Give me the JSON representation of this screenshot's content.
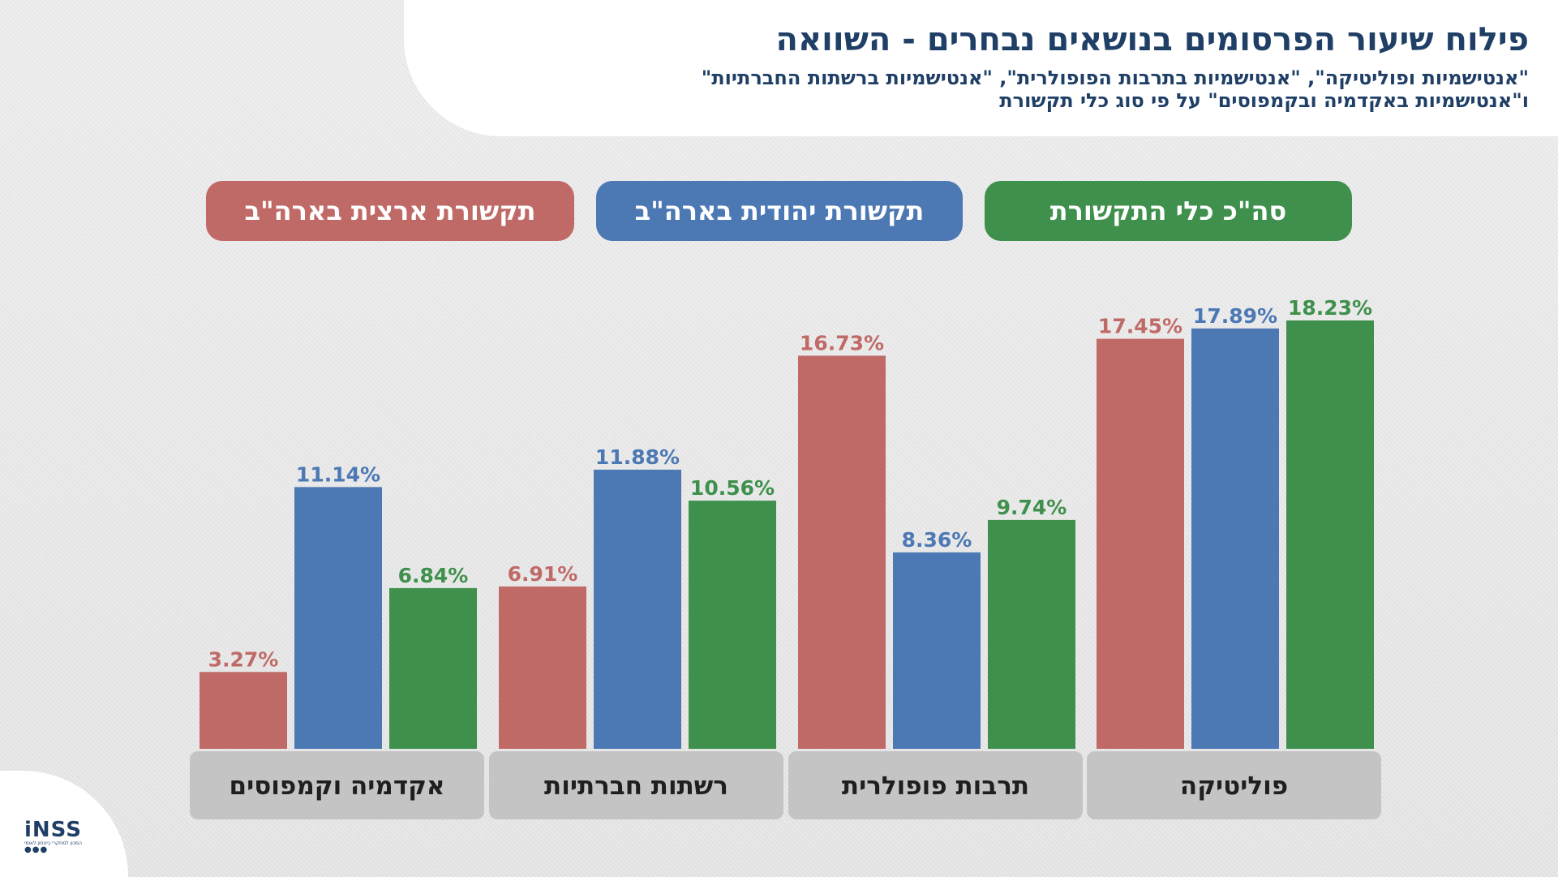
{
  "header": {
    "title": "פילוח שיעור הפרסומים בנושאים נבחרים - השוואה",
    "subtitle_line1": "\"אנטישמיות ופוליטיקה\", \"אנטישמיות בתרבות הפופולרית\", \"אנטישמיות ברשתות החברתיות\"",
    "subtitle_line2": "ו\"אנטישמיות באקדמיה ובקמפוסים\" על פי סוג כלי תקשורת"
  },
  "logo": {
    "text": "iNSS",
    "small_text": "המכון למחקרי ביטחון לאומי",
    "dots": "●●●"
  },
  "colors": {
    "us_national_media": "#c06a68",
    "us_jewish_media": "#4c78b4",
    "total_media": "#3e904c",
    "category_box": "#c4c4c4",
    "header_text": "#1f3f66"
  },
  "chart_data": {
    "type": "bar",
    "categories": [
      "אקדמיה וקמפוסים",
      "רשתות חברתיות",
      "תרבות פופולרית",
      "פוליטיקה"
    ],
    "series": [
      {
        "name": "תקשורת ארצית בארה\"ב",
        "values": [
          3.27,
          6.91,
          16.73,
          17.45
        ],
        "labels": [
          "3.27%",
          "6.91%",
          "16.73%",
          "17.45%"
        ],
        "color": "#c06a68"
      },
      {
        "name": "תקשורת יהודית בארה\"ב",
        "values": [
          11.14,
          11.88,
          8.36,
          17.89
        ],
        "labels": [
          "11.14%",
          "11.88%",
          "8.36%",
          "17.89%"
        ],
        "color": "#4c78b4"
      },
      {
        "name": "סה\"כ כלי התקשורת",
        "values": [
          6.84,
          10.56,
          9.74,
          18.23
        ],
        "labels": [
          "6.84%",
          "10.56%",
          "9.74%",
          "18.23%"
        ],
        "color": "#3e904c"
      }
    ],
    "ylim": [
      0,
      20
    ],
    "legend_position": "top"
  }
}
